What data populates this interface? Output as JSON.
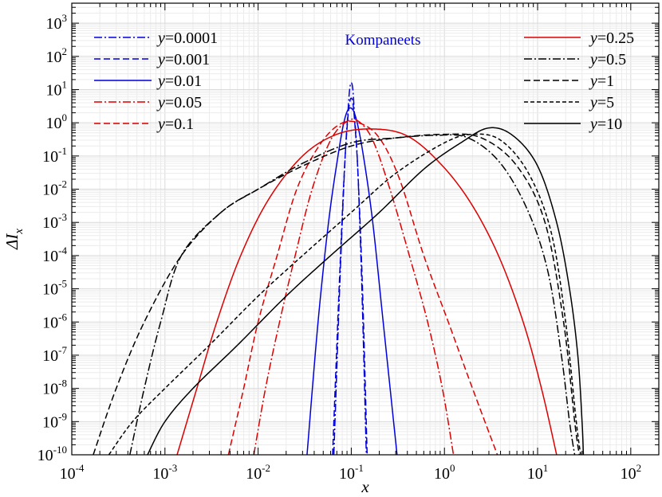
{
  "chart_data": {
    "type": "line",
    "title": "",
    "xlabel": "x",
    "ylabel_base": "ΔI",
    "ylabel_sub": "x",
    "x_scale": "log",
    "y_scale": "log",
    "xlim": [
      0.0001,
      200
    ],
    "ylim": [
      1e-10,
      4000
    ],
    "grid": true,
    "annotation": "Kompaneets",
    "annotation_color": "#0000dd",
    "x_ticks": [
      {
        "base": "10",
        "exp": "-4"
      },
      {
        "base": "10",
        "exp": "-3"
      },
      {
        "base": "10",
        "exp": "-2"
      },
      {
        "base": "10",
        "exp": "-1"
      },
      {
        "base": "10",
        "exp": "0"
      },
      {
        "base": "10",
        "exp": "1"
      },
      {
        "base": "10",
        "exp": "2"
      }
    ],
    "y_ticks": [
      {
        "base": "10",
        "exp": "-10"
      },
      {
        "base": "10",
        "exp": "-9"
      },
      {
        "base": "10",
        "exp": "-8"
      },
      {
        "base": "10",
        "exp": "-7"
      },
      {
        "base": "10",
        "exp": "-6"
      },
      {
        "base": "10",
        "exp": "-5"
      },
      {
        "base": "10",
        "exp": "-4"
      },
      {
        "base": "10",
        "exp": "-3"
      },
      {
        "base": "10",
        "exp": "-2"
      },
      {
        "base": "10",
        "exp": "-1"
      },
      {
        "base": "10",
        "exp": "0"
      },
      {
        "base": "10",
        "exp": "1"
      },
      {
        "base": "10",
        "exp": "2"
      },
      {
        "base": "10",
        "exp": "3"
      }
    ],
    "series": [
      {
        "name": "y=0.0001",
        "y_label": "y",
        "value_label": "=0.0001",
        "color": "#0000dd",
        "dash": "dashdot",
        "legend_pos": "top-left",
        "points": [
          [
            0.065,
            1e-10
          ],
          [
            0.075,
            1e-05
          ],
          [
            0.085,
            0.05
          ],
          [
            0.092,
            2
          ],
          [
            0.096,
            10
          ],
          [
            0.1,
            16
          ],
          [
            0.104,
            10
          ],
          [
            0.108,
            2
          ],
          [
            0.117,
            0.05
          ],
          [
            0.13,
            1e-05
          ],
          [
            0.145,
            1e-10
          ]
        ]
      },
      {
        "name": "y=0.001",
        "y_label": "y",
        "value_label": "=0.001",
        "color": "#0000dd",
        "dash": "dashed",
        "legend_pos": "top-left",
        "points": [
          [
            0.063,
            1e-10
          ],
          [
            0.074,
            1e-05
          ],
          [
            0.084,
            0.03
          ],
          [
            0.091,
            1
          ],
          [
            0.096,
            4
          ],
          [
            0.1,
            5.5
          ],
          [
            0.104,
            4
          ],
          [
            0.109,
            1
          ],
          [
            0.118,
            0.03
          ],
          [
            0.132,
            1e-05
          ],
          [
            0.148,
            1e-10
          ]
        ]
      },
      {
        "name": "y=0.01",
        "y_label": "y",
        "value_label": "=0.01",
        "color": "#0000dd",
        "dash": "solid",
        "legend_pos": "top-left",
        "points": [
          [
            0.0335,
            1e-10
          ],
          [
            0.044,
            1e-06
          ],
          [
            0.057,
            0.001
          ],
          [
            0.072,
            0.1
          ],
          [
            0.085,
            1.3
          ],
          [
            0.098,
            2.8
          ],
          [
            0.113,
            1.3
          ],
          [
            0.135,
            0.1
          ],
          [
            0.17,
            0.001
          ],
          [
            0.22,
            1e-06
          ],
          [
            0.31,
            1e-10
          ]
        ]
      },
      {
        "name": "y=0.05",
        "y_label": "y",
        "value_label": "=0.05",
        "color": "#dd0000",
        "dash": "dashdot",
        "legend_pos": "top-left",
        "points": [
          [
            0.009,
            1e-10
          ],
          [
            0.012,
            1e-08
          ],
          [
            0.017,
            1e-06
          ],
          [
            0.025,
            0.0001
          ],
          [
            0.038,
            0.01
          ],
          [
            0.06,
            0.3
          ],
          [
            0.09,
            1.1
          ],
          [
            0.12,
            1.1
          ],
          [
            0.17,
            0.3
          ],
          [
            0.26,
            0.01
          ],
          [
            0.42,
            0.0001
          ],
          [
            0.66,
            1e-06
          ],
          [
            0.95,
            1e-08
          ],
          [
            1.25,
            1e-10
          ]
        ]
      },
      {
        "name": "y=0.1",
        "y_label": "y",
        "value_label": "=0.1",
        "color": "#dd0000",
        "dash": "dashed",
        "legend_pos": "top-left",
        "points": [
          [
            0.0048,
            1e-10
          ],
          [
            0.007,
            1e-08
          ],
          [
            0.01,
            1e-06
          ],
          [
            0.016,
            0.0001
          ],
          [
            0.026,
            0.01
          ],
          [
            0.045,
            0.2
          ],
          [
            0.075,
            0.9
          ],
          [
            0.12,
            1.0
          ],
          [
            0.2,
            0.35
          ],
          [
            0.33,
            0.02
          ],
          [
            0.6,
            0.0001
          ],
          [
            1.1,
            1e-06
          ],
          [
            2.0,
            1e-08
          ],
          [
            3.7,
            1e-10
          ]
        ]
      },
      {
        "name": "y=0.25",
        "y_label": "y",
        "value_label": "=0.25",
        "color": "#dd0000",
        "dash": "solid",
        "legend_pos": "top-right",
        "points": [
          [
            0.00135,
            1e-10
          ],
          [
            0.0022,
            1e-08
          ],
          [
            0.0036,
            1e-06
          ],
          [
            0.0065,
            0.0001
          ],
          [
            0.013,
            0.005
          ],
          [
            0.03,
            0.1
          ],
          [
            0.07,
            0.45
          ],
          [
            0.17,
            0.65
          ],
          [
            0.4,
            0.4
          ],
          [
            0.9,
            0.06
          ],
          [
            1.9,
            0.004
          ],
          [
            3.8,
            0.0001
          ],
          [
            7,
            1e-06
          ],
          [
            11,
            1e-08
          ],
          [
            16,
            1e-10
          ]
        ]
      },
      {
        "name": "y=0.5",
        "y_label": "y",
        "value_label": "=0.5",
        "color": "#000000",
        "dash": "dashdot",
        "legend_pos": "top-right",
        "points": [
          [
            0.00042,
            1e-10
          ],
          [
            0.0006,
            1e-08
          ],
          [
            0.0009,
            1e-06
          ],
          [
            0.0015,
            0.0001
          ],
          [
            0.004,
            0.002
          ],
          [
            0.01,
            0.01
          ],
          [
            0.03,
            0.06
          ],
          [
            0.1,
            0.25
          ],
          [
            0.3,
            0.35
          ],
          [
            0.8,
            0.42
          ],
          [
            1.8,
            0.35
          ],
          [
            4,
            0.06
          ],
          [
            8,
            0.002
          ],
          [
            13,
            3e-05
          ],
          [
            18,
            1e-07
          ],
          [
            22,
            1e-09
          ],
          [
            25,
            1e-10
          ]
        ]
      },
      {
        "name": "y=1",
        "y_label": "y",
        "value_label": "=1",
        "color": "#000000",
        "dash": "dashed",
        "legend_pos": "top-right",
        "points": [
          [
            0.00017,
            1e-10
          ],
          [
            0.0003,
            1e-08
          ],
          [
            0.0006,
            1e-06
          ],
          [
            0.0015,
            0.0001
          ],
          [
            0.004,
            0.002
          ],
          [
            0.01,
            0.01
          ],
          [
            0.03,
            0.05
          ],
          [
            0.1,
            0.2
          ],
          [
            0.3,
            0.35
          ],
          [
            1,
            0.45
          ],
          [
            2.5,
            0.35
          ],
          [
            6,
            0.05
          ],
          [
            12,
            0.001
          ],
          [
            19,
            1e-06
          ],
          [
            25,
            1e-09
          ],
          [
            28,
            1e-10
          ]
        ]
      },
      {
        "name": "y=5",
        "y_label": "y",
        "value_label": "=5",
        "color": "#000000",
        "dash": "dashed2",
        "legend_pos": "top-right",
        "points": [
          [
            0.00025,
            1e-10
          ],
          [
            0.00045,
            1e-09
          ],
          [
            0.001,
            1e-08
          ],
          [
            0.003,
            2e-07
          ],
          [
            0.01,
            6e-06
          ],
          [
            0.03,
            0.0001
          ],
          [
            0.1,
            0.002
          ],
          [
            0.3,
            0.03
          ],
          [
            1,
            0.25
          ],
          [
            2,
            0.45
          ],
          [
            4,
            0.3
          ],
          [
            8,
            0.03
          ],
          [
            14,
            0.0005
          ],
          [
            20,
            1e-06
          ],
          [
            26,
            1e-09
          ],
          [
            29,
            1e-10
          ]
        ]
      },
      {
        "name": "y=10",
        "y_label": "y",
        "value_label": "=10",
        "color": "#000000",
        "dash": "solid",
        "legend_pos": "top-right",
        "points": [
          [
            0.00065,
            1e-10
          ],
          [
            0.001,
            1e-09
          ],
          [
            0.002,
            1e-08
          ],
          [
            0.006,
            2e-07
          ],
          [
            0.02,
            6e-06
          ],
          [
            0.06,
            0.0001
          ],
          [
            0.2,
            0.002
          ],
          [
            0.6,
            0.04
          ],
          [
            1.5,
            0.25
          ],
          [
            3,
            0.7
          ],
          [
            5.5,
            0.4
          ],
          [
            10,
            0.05
          ],
          [
            16,
            0.001
          ],
          [
            22,
            1e-05
          ],
          [
            27,
            1e-07
          ],
          [
            30,
            1e-09
          ],
          [
            31,
            1e-10
          ]
        ]
      }
    ]
  }
}
